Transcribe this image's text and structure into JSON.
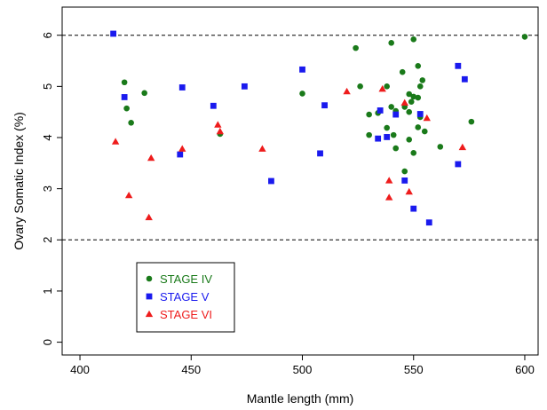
{
  "chart_data": {
    "type": "scatter",
    "xlabel": "Mantle length (mm)",
    "ylabel": "Ovary Somatic Index (%)",
    "xlim": [
      392,
      606
    ],
    "ylim": [
      -0.25,
      6.55
    ],
    "x_ticks": [
      "400",
      "450",
      "500",
      "550",
      "600"
    ],
    "y_ticks": [
      "0",
      "1",
      "2",
      "3",
      "4",
      "5",
      "6"
    ],
    "reference_lines": [
      2,
      6
    ],
    "grid": false,
    "legend_position": "bottom-left",
    "series": [
      {
        "name": "STAGE IV",
        "color": "#1a7a1a",
        "marker": "circle",
        "points": [
          [
            420,
            5.08
          ],
          [
            421,
            4.57
          ],
          [
            423,
            4.29
          ],
          [
            429,
            4.87
          ],
          [
            463,
            4.07
          ],
          [
            500,
            4.86
          ],
          [
            524,
            5.75
          ],
          [
            526,
            5.0
          ],
          [
            530,
            4.45
          ],
          [
            530,
            4.05
          ],
          [
            534,
            4.48
          ],
          [
            538,
            4.19
          ],
          [
            538,
            5.0
          ],
          [
            540,
            5.85
          ],
          [
            540,
            4.6
          ],
          [
            541,
            4.05
          ],
          [
            542,
            3.79
          ],
          [
            542,
            4.52
          ],
          [
            545,
            5.28
          ],
          [
            546,
            4.6
          ],
          [
            546,
            3.34
          ],
          [
            548,
            4.85
          ],
          [
            548,
            4.5
          ],
          [
            548,
            3.96
          ],
          [
            549,
            4.7
          ],
          [
            550,
            5.92
          ],
          [
            550,
            4.8
          ],
          [
            550,
            3.7
          ],
          [
            552,
            5.4
          ],
          [
            552,
            4.78
          ],
          [
            552,
            4.2
          ],
          [
            553,
            4.4
          ],
          [
            553,
            5.0
          ],
          [
            554,
            5.12
          ],
          [
            555,
            4.12
          ],
          [
            562,
            3.82
          ],
          [
            576,
            4.31
          ],
          [
            600,
            5.97
          ]
        ]
      },
      {
        "name": "STAGE V",
        "color": "#1a1aee",
        "marker": "square",
        "points": [
          [
            415,
            6.03
          ],
          [
            420,
            4.79
          ],
          [
            445,
            3.67
          ],
          [
            446,
            4.98
          ],
          [
            460,
            4.62
          ],
          [
            474,
            5.0
          ],
          [
            486,
            3.15
          ],
          [
            500,
            5.33
          ],
          [
            508,
            3.69
          ],
          [
            510,
            4.63
          ],
          [
            534,
            3.98
          ],
          [
            535,
            4.53
          ],
          [
            538,
            4.01
          ],
          [
            542,
            4.45
          ],
          [
            546,
            3.16
          ],
          [
            550,
            2.61
          ],
          [
            553,
            4.46
          ],
          [
            557,
            2.34
          ],
          [
            570,
            3.48
          ],
          [
            570,
            5.4
          ],
          [
            573,
            5.14
          ]
        ]
      },
      {
        "name": "STAGE VI",
        "color": "#ee1c1c",
        "marker": "triangle",
        "points": [
          [
            416,
            3.92
          ],
          [
            422,
            2.87
          ],
          [
            431,
            2.44
          ],
          [
            432,
            3.6
          ],
          [
            446,
            3.78
          ],
          [
            462,
            4.25
          ],
          [
            463,
            4.12
          ],
          [
            482,
            3.78
          ],
          [
            520,
            4.9
          ],
          [
            536,
            4.95
          ],
          [
            539,
            3.16
          ],
          [
            539,
            2.83
          ],
          [
            546,
            4.68
          ],
          [
            548,
            2.94
          ],
          [
            556,
            4.38
          ],
          [
            572,
            3.81
          ]
        ]
      }
    ]
  }
}
